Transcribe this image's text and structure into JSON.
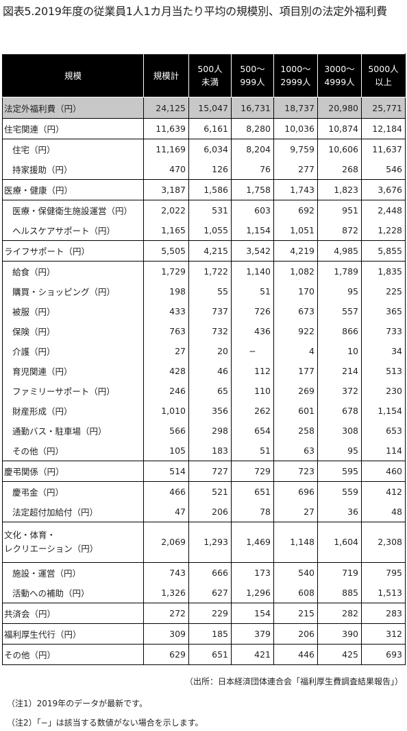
{
  "title": "図表5.2019年度の従業員1人1カ月当たり平均の規模別、項目別の法定外福利費",
  "headers": [
    "規模",
    "規模計",
    "500人\n未満",
    "500〜\n999人",
    "1000〜\n2999人",
    "3000〜\n4999人",
    "5000人\n以上"
  ],
  "rows": [
    {
      "label": "法定外福利費（円）",
      "kind": "total",
      "values": [
        "24,125",
        "15,047",
        "16,731",
        "18,737",
        "20,980",
        "25,771"
      ]
    },
    {
      "label": "住宅関連（円）",
      "kind": "cat",
      "values": [
        "11,639",
        "6,161",
        "8,280",
        "10,036",
        "10,874",
        "12,184"
      ]
    },
    {
      "label": "住宅（円）",
      "kind": "sub",
      "values": [
        "11,169",
        "6,034",
        "8,204",
        "9,759",
        "10,606",
        "11,637"
      ]
    },
    {
      "label": "持家援助（円）",
      "kind": "sub",
      "values": [
        "470",
        "126",
        "76",
        "277",
        "268",
        "546"
      ]
    },
    {
      "label": "医療・健康（円）",
      "kind": "cat",
      "values": [
        "3,187",
        "1,586",
        "1,758",
        "1,743",
        "1,823",
        "3,676"
      ]
    },
    {
      "label": "医療・保健衛生施設運営（円）",
      "kind": "sub",
      "values": [
        "2,022",
        "531",
        "603",
        "692",
        "951",
        "2,448"
      ]
    },
    {
      "label": "ヘルスケアサポート（円）",
      "kind": "sub",
      "values": [
        "1,165",
        "1,055",
        "1,154",
        "1,051",
        "872",
        "1,228"
      ]
    },
    {
      "label": "ライフサポート（円）",
      "kind": "cat",
      "values": [
        "5,505",
        "4,215",
        "3,542",
        "4,219",
        "4,985",
        "5,855"
      ]
    },
    {
      "label": "給食（円）",
      "kind": "sub",
      "values": [
        "1,729",
        "1,722",
        "1,140",
        "1,082",
        "1,789",
        "1,835"
      ]
    },
    {
      "label": "購買・ショッピング（円）",
      "kind": "sub",
      "values": [
        "198",
        "55",
        "51",
        "170",
        "95",
        "225"
      ]
    },
    {
      "label": "被服（円）",
      "kind": "sub",
      "values": [
        "433",
        "737",
        "726",
        "673",
        "557",
        "365"
      ]
    },
    {
      "label": "保険（円）",
      "kind": "sub",
      "values": [
        "763",
        "732",
        "436",
        "922",
        "866",
        "733"
      ]
    },
    {
      "label": "介護（円）",
      "kind": "sub",
      "values": [
        "27",
        "20",
        "−",
        "4",
        "10",
        "34"
      ]
    },
    {
      "label": "育児関連（円）",
      "kind": "sub",
      "values": [
        "428",
        "46",
        "112",
        "177",
        "214",
        "513"
      ]
    },
    {
      "label": "ファミリーサポート（円）",
      "kind": "sub",
      "values": [
        "246",
        "65",
        "110",
        "269",
        "372",
        "230"
      ]
    },
    {
      "label": "財産形成（円）",
      "kind": "sub",
      "values": [
        "1,010",
        "356",
        "262",
        "601",
        "678",
        "1,154"
      ]
    },
    {
      "label": "通勤バス・駐車場（円）",
      "kind": "sub",
      "values": [
        "566",
        "298",
        "654",
        "258",
        "308",
        "653"
      ]
    },
    {
      "label": "その他（円）",
      "kind": "sub",
      "values": [
        "105",
        "183",
        "51",
        "63",
        "95",
        "114"
      ]
    },
    {
      "label": "慶弔関係（円）",
      "kind": "cat",
      "values": [
        "514",
        "727",
        "729",
        "723",
        "595",
        "460"
      ]
    },
    {
      "label": "慶弔金（円）",
      "kind": "sub",
      "values": [
        "466",
        "521",
        "651",
        "696",
        "559",
        "412"
      ]
    },
    {
      "label": "法定超付加給付（円）",
      "kind": "sub",
      "values": [
        "47",
        "206",
        "78",
        "27",
        "36",
        "48"
      ]
    },
    {
      "label": "文化・体育・\nレクリエーション（円）",
      "kind": "cat-tall",
      "values": [
        "2,069",
        "1,293",
        "1,469",
        "1,148",
        "1,604",
        "2,308"
      ]
    },
    {
      "label": "施設・運営（円）",
      "kind": "sub",
      "values": [
        "743",
        "666",
        "173",
        "540",
        "719",
        "795"
      ]
    },
    {
      "label": "活動への補助（円）",
      "kind": "sub",
      "values": [
        "1,326",
        "627",
        "1,296",
        "608",
        "885",
        "1,513"
      ]
    },
    {
      "label": "共済会（円）",
      "kind": "cat",
      "values": [
        "272",
        "229",
        "154",
        "215",
        "282",
        "283"
      ]
    },
    {
      "label": "福利厚生代行（円）",
      "kind": "cat",
      "values": [
        "309",
        "185",
        "379",
        "206",
        "390",
        "312"
      ]
    },
    {
      "label": "その他（円）",
      "kind": "cat",
      "values": [
        "629",
        "651",
        "421",
        "446",
        "425",
        "693"
      ]
    }
  ],
  "source": "（出所：日本経済団体連合会「福利厚生費調査結果報告」）",
  "notes": [
    "（注1）2019年のデータが最新です。",
    "（注2）「−」は該当する数値がない場合を示します。"
  ]
}
